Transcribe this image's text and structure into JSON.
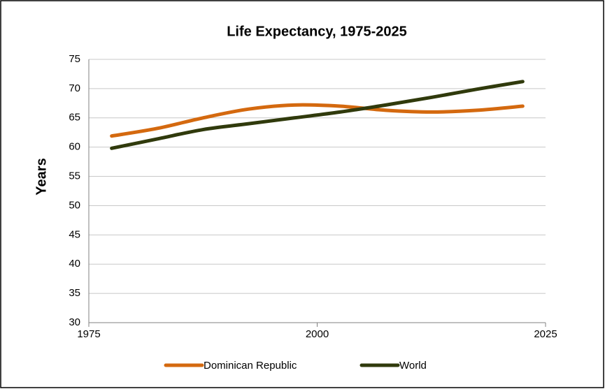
{
  "chart_data": {
    "type": "line",
    "title": "Life Expectancy, 1975-2025",
    "y_label": "Years",
    "x": [
      1977.5,
      1982.5,
      1987.5,
      1992.5,
      1997.5,
      2002.5,
      2007.5,
      2012.5,
      2017.5,
      2022.5
    ],
    "series": [
      {
        "name": "Dominican Republic",
        "color": "#d4690f",
        "values": [
          61.9,
          63.2,
          65.0,
          66.5,
          67.2,
          67.0,
          66.3,
          66.0,
          66.3,
          67.0
        ]
      },
      {
        "name": "World",
        "color": "#303a0c",
        "values": [
          59.8,
          61.4,
          63.0,
          64.0,
          65.0,
          66.0,
          67.2,
          68.5,
          69.9,
          71.2
        ]
      }
    ],
    "xlim": [
      1975,
      2025
    ],
    "xticks": [
      1975,
      2000,
      2025
    ],
    "ylim": [
      30,
      75
    ],
    "yticks": [
      30,
      35,
      40,
      45,
      50,
      55,
      60,
      65,
      70,
      75
    ],
    "grid": true,
    "legend": "bottom",
    "smooth": true
  }
}
